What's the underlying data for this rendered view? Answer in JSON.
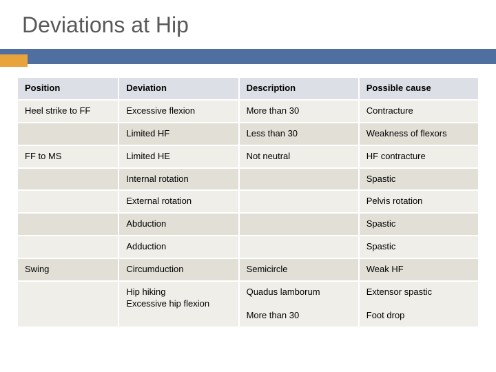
{
  "title": "Deviations at Hip",
  "colors": {
    "title_text": "#595959",
    "bar_blue": "#4f6fa0",
    "bar_orange": "#e8a33d",
    "header_bg": "#dce0e6",
    "row_band_a": "#f0eee9",
    "row_band_b": "#e2dfd6",
    "border": "#ffffff",
    "background": "#ffffff"
  },
  "typography": {
    "title_fontsize": 32,
    "cell_fontsize": 13,
    "header_fontweight": 700
  },
  "table": {
    "type": "table",
    "columns": [
      "Position",
      "Deviation",
      "Description",
      "Possible cause"
    ],
    "column_widths_pct": [
      22,
      26,
      26,
      26
    ],
    "rows": [
      {
        "band": "a",
        "cells": [
          "Heel strike to FF",
          "Excessive flexion",
          "More than 30",
          "Contracture"
        ]
      },
      {
        "band": "b",
        "cells": [
          "",
          "Limited HF",
          "Less than 30",
          "Weakness of flexors"
        ]
      },
      {
        "band": "a",
        "cells": [
          "FF to MS",
          "Limited HE",
          "Not neutral",
          "HF contracture"
        ]
      },
      {
        "band": "b",
        "cells": [
          "",
          "Internal rotation",
          "",
          "Spastic"
        ]
      },
      {
        "band": "a",
        "cells": [
          "",
          "External rotation",
          "",
          "Pelvis rotation"
        ]
      },
      {
        "band": "b",
        "cells": [
          "",
          "Abduction",
          "",
          "Spastic"
        ]
      },
      {
        "band": "a",
        "cells": [
          "",
          "Adduction",
          "",
          "Spastic"
        ]
      },
      {
        "band": "b",
        "cells": [
          "Swing",
          "Circumduction",
          "Semicircle",
          "Weak HF"
        ]
      },
      {
        "band": "a",
        "cells": [
          "",
          "Hip hiking\nExcessive hip flexion",
          "Quadus lamborum\n\nMore than 30",
          "Extensor spastic\n\nFoot drop"
        ]
      }
    ]
  }
}
